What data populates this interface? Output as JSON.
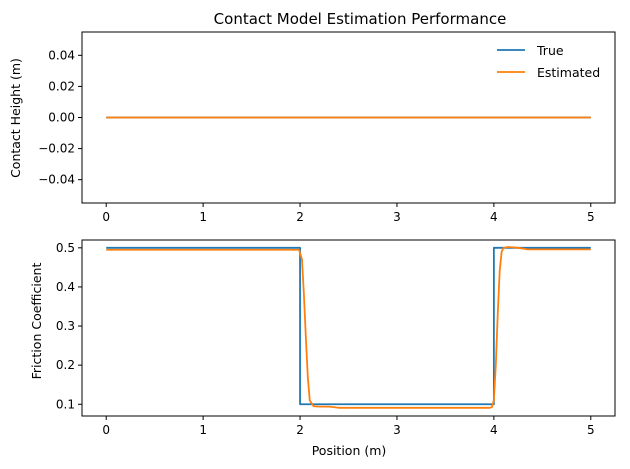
{
  "chart_data": [
    {
      "type": "line",
      "title": "Contact Model Estimation Performance",
      "xlabel": "",
      "ylabel": "Contact Height (m)",
      "xlim": [
        -0.25,
        5.25
      ],
      "ylim": [
        -0.055,
        0.055
      ],
      "xticks": [
        0,
        1,
        2,
        3,
        4,
        5
      ],
      "yticks": [
        -0.04,
        -0.02,
        0.0,
        0.02,
        0.04
      ],
      "xtick_labels": [
        "0",
        "1",
        "2",
        "3",
        "4",
        "5"
      ],
      "ytick_labels": [
        "−0.04",
        "−0.02",
        "0.00",
        "0.02",
        "0.04"
      ],
      "grid": false,
      "legend": {
        "position": "upper-right",
        "entries": [
          "True",
          "Estimated"
        ]
      },
      "series": [
        {
          "name": "True",
          "color": "#1f77b4",
          "x": [
            0,
            5
          ],
          "y": [
            0.0,
            0.0
          ]
        },
        {
          "name": "Estimated",
          "color": "#ff7f0e",
          "x": [
            0,
            5
          ],
          "y": [
            0.0,
            0.0
          ]
        }
      ]
    },
    {
      "type": "line",
      "title": "",
      "xlabel": "Position (m)",
      "ylabel": "Friction Coefficient",
      "xlim": [
        -0.25,
        5.25
      ],
      "ylim": [
        0.07,
        0.52
      ],
      "xticks": [
        0,
        1,
        2,
        3,
        4,
        5
      ],
      "yticks": [
        0.1,
        0.2,
        0.3,
        0.4,
        0.5
      ],
      "xtick_labels": [
        "0",
        "1",
        "2",
        "3",
        "4",
        "5"
      ],
      "ytick_labels": [
        "0.1",
        "0.2",
        "0.3",
        "0.4",
        "0.5"
      ],
      "grid": false,
      "series": [
        {
          "name": "True",
          "color": "#1f77b4",
          "x": [
            0,
            2,
            2,
            4,
            4,
            5
          ],
          "y": [
            0.5,
            0.5,
            0.1,
            0.1,
            0.5,
            0.5
          ]
        },
        {
          "name": "Estimated",
          "color": "#ff7f0e",
          "x": [
            0,
            1.99,
            2.02,
            2.04,
            2.06,
            2.08,
            2.1,
            2.14,
            2.2,
            2.3,
            2.4,
            3.9,
            3.96,
            3.98,
            4.0,
            4.02,
            4.04,
            4.06,
            4.08,
            4.1,
            4.15,
            4.25,
            4.35,
            5
          ],
          "y": [
            0.495,
            0.495,
            0.47,
            0.38,
            0.27,
            0.17,
            0.11,
            0.095,
            0.094,
            0.094,
            0.091,
            0.091,
            0.091,
            0.093,
            0.11,
            0.2,
            0.33,
            0.44,
            0.49,
            0.5,
            0.502,
            0.5,
            0.496,
            0.496
          ]
        }
      ]
    }
  ]
}
